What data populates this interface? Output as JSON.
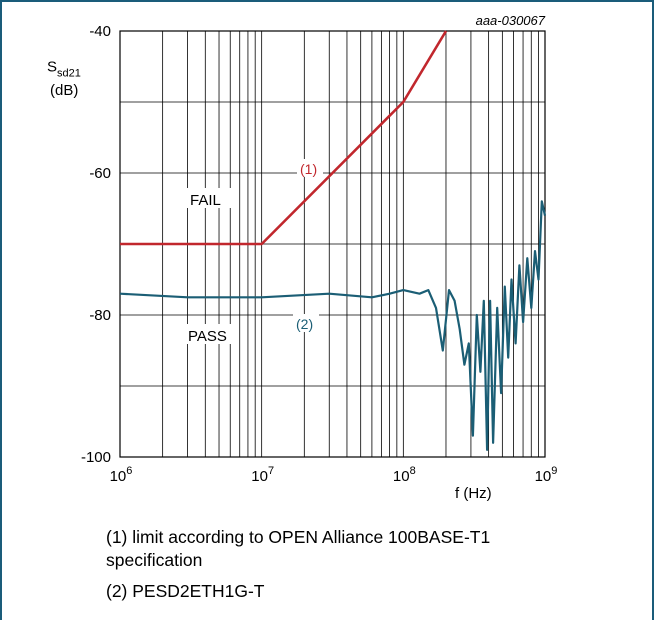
{
  "chart_data": {
    "type": "line",
    "figure_id": "aaa-030067",
    "ylabel_main": "S",
    "ylabel_sub": "sd21",
    "ylabel_unit": "(dB)",
    "xlabel": "f (Hz)",
    "xscale": "log",
    "xlim": [
      1000000,
      1000000000
    ],
    "ylim": [
      -100,
      -40
    ],
    "x_ticks": [
      {
        "base": "10",
        "exp": "6"
      },
      {
        "base": "10",
        "exp": "7"
      },
      {
        "base": "10",
        "exp": "8"
      },
      {
        "base": "10",
        "exp": "9"
      }
    ],
    "y_ticks": [
      "-40",
      "-60",
      "-80",
      "-100"
    ],
    "y_tick_values": [
      -40,
      -60,
      -80,
      -100
    ],
    "grid": true,
    "region_labels": {
      "fail": "FAIL",
      "pass": "PASS"
    },
    "series": [
      {
        "name": "(1)",
        "color": "#c1272d",
        "x": [
          1000000,
          10000000,
          100000000,
          200000000
        ],
        "y": [
          -70,
          -70,
          -50,
          -40
        ]
      },
      {
        "name": "(2)",
        "color": "#1b5e75",
        "x": [
          1000000,
          3000000,
          10000000,
          30000000,
          60000000,
          80000000,
          100000000,
          130000000,
          150000000,
          170000000,
          190000000,
          210000000,
          230000000,
          250000000,
          270000000,
          290000000,
          310000000,
          330000000,
          350000000,
          370000000,
          390000000,
          410000000,
          430000000,
          460000000,
          490000000,
          520000000,
          550000000,
          580000000,
          620000000,
          660000000,
          700000000,
          750000000,
          800000000,
          850000000,
          900000000,
          950000000,
          1000000000
        ],
        "y": [
          -77,
          -77.5,
          -77.5,
          -77,
          -77.5,
          -77,
          -76.5,
          -77,
          -76.5,
          -79,
          -85,
          -76.5,
          -78,
          -82,
          -87,
          -84,
          -97,
          -80,
          -88,
          -78,
          -99,
          -78,
          -98,
          -79,
          -91,
          -76,
          -86,
          -75,
          -84,
          -73,
          -81,
          -72,
          -79,
          -71,
          -75,
          -64,
          -66
        ]
      }
    ]
  },
  "notes": {
    "note1": "(1) limit according to OPEN Alliance 100BASE-T1 specification",
    "note2": "(2) PESD2ETH1G-T"
  }
}
